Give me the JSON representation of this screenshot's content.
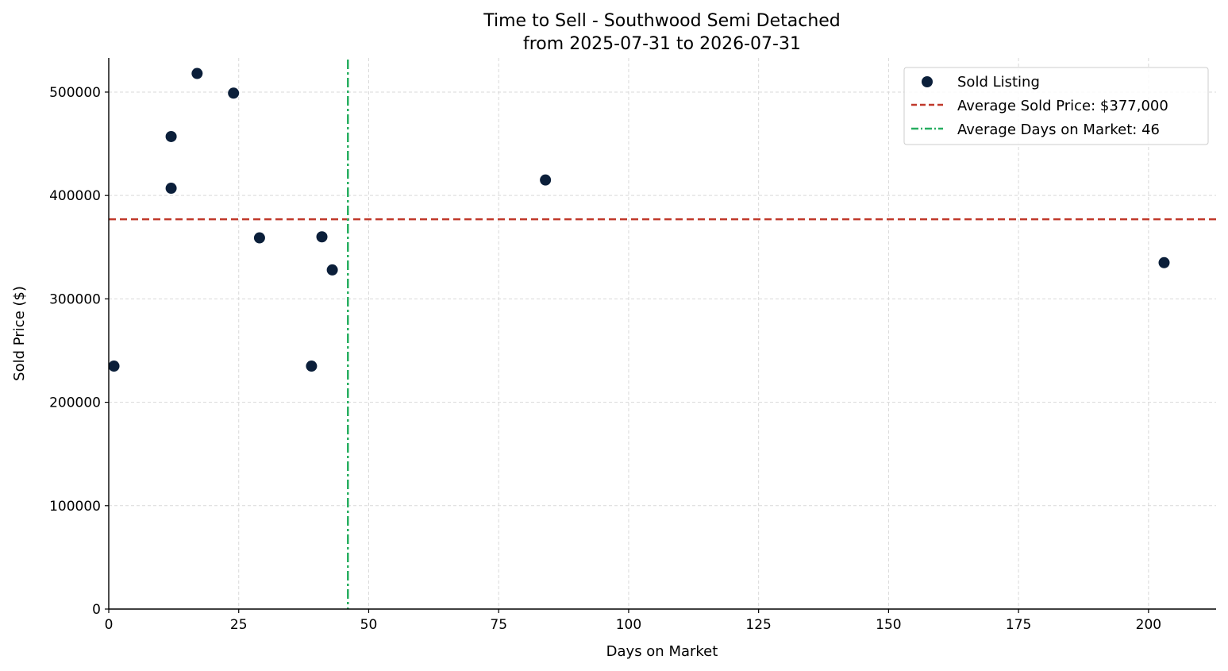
{
  "chart_data": {
    "type": "scatter",
    "title": "Time to Sell - Southwood Semi Detached",
    "subtitle": "from 2025-07-31 to 2026-07-31",
    "xlabel": "Days on Market",
    "ylabel": "Sold Price ($)",
    "xlim": [
      0,
      213
    ],
    "ylim": [
      0,
      533000
    ],
    "xticks": [
      0,
      25,
      50,
      75,
      100,
      125,
      150,
      175,
      200
    ],
    "yticks": [
      0,
      100000,
      200000,
      300000,
      400000,
      500000
    ],
    "grid": true,
    "legend_position": "top-right",
    "series": [
      {
        "name": "Sold Listing",
        "color": "#0b1f3a",
        "points": [
          {
            "x": 1,
            "y": 235000
          },
          {
            "x": 12,
            "y": 457000
          },
          {
            "x": 12,
            "y": 407000
          },
          {
            "x": 17,
            "y": 518000
          },
          {
            "x": 24,
            "y": 499000
          },
          {
            "x": 29,
            "y": 359000
          },
          {
            "x": 39,
            "y": 235000
          },
          {
            "x": 41,
            "y": 360000
          },
          {
            "x": 43,
            "y": 328000
          },
          {
            "x": 84,
            "y": 415000
          },
          {
            "x": 203,
            "y": 335000
          }
        ]
      }
    ],
    "reference_lines": [
      {
        "orientation": "horizontal",
        "value": 377000,
        "label": "Average Sold Price: $377,000",
        "color": "#c0392b",
        "style": "dashed"
      },
      {
        "orientation": "vertical",
        "value": 46,
        "label": "Average Days on Market: 46",
        "color": "#27ae60",
        "style": "dashdot"
      }
    ]
  }
}
